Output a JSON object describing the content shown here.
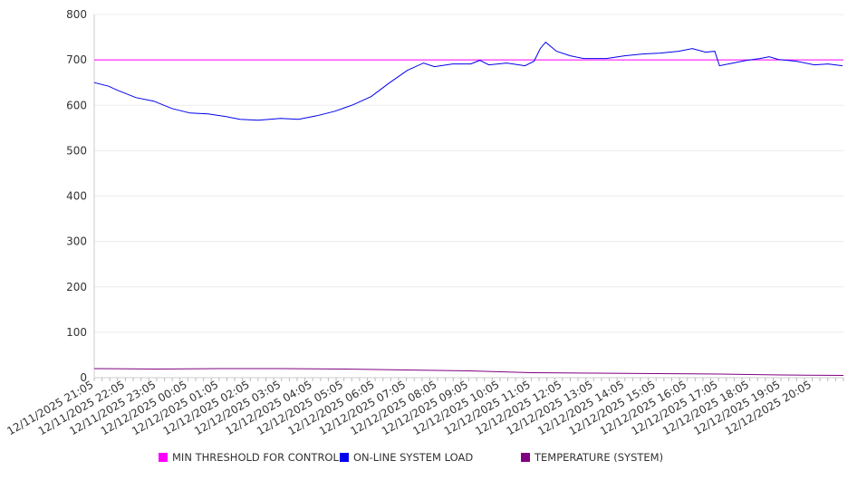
{
  "chart_data": {
    "type": "line",
    "title": "",
    "xlabel": "",
    "ylabel": "",
    "ylim": [
      0,
      800
    ],
    "yticks": [
      "0",
      "100",
      "200",
      "300",
      "400",
      "500",
      "600",
      "700",
      "800"
    ],
    "xlim_hours": [
      0,
      24
    ],
    "xtick_labels": [
      "12/11/2025 21:05",
      "12/11/2025 22:05",
      "12/11/2025 23:05",
      "12/12/2025 00:05",
      "12/12/2025 01:05",
      "12/12/2025 02:05",
      "12/12/2025 03:05",
      "12/12/2025 04:05",
      "12/12/2025 05:05",
      "12/12/2025 06:05",
      "12/12/2025 07:05",
      "12/12/2025 08:05",
      "12/12/2025 09:05",
      "12/12/2025 10:05",
      "12/12/2025 11:05",
      "12/12/2025 12:05",
      "12/12/2025 13:05",
      "12/12/2025 14:05",
      "12/12/2025 15:05",
      "12/12/2025 16:05",
      "12/12/2025 17:05",
      "12/12/2025 18:05",
      "12/12/2025 19:05",
      "12/12/2025 20:05"
    ],
    "grid": true,
    "legend_position": "bottom",
    "series": [
      {
        "name": "MIN THRESHOLD FOR CONTROL",
        "color": "#ff00ff",
        "points": [
          [
            0,
            700
          ],
          [
            24,
            700
          ]
        ]
      },
      {
        "name": "ON-LINE SYSTEM LOAD",
        "color": "#0000ee",
        "points": [
          [
            0,
            650
          ],
          [
            0.46,
            642
          ],
          [
            0.75,
            633
          ],
          [
            1.33,
            617
          ],
          [
            1.91,
            609
          ],
          [
            2.49,
            593
          ],
          [
            3.07,
            583
          ],
          [
            3.65,
            581
          ],
          [
            4.23,
            575
          ],
          [
            4.67,
            569
          ],
          [
            5.25,
            567
          ],
          [
            5.97,
            571
          ],
          [
            6.55,
            569
          ],
          [
            7.13,
            577
          ],
          [
            7.71,
            587
          ],
          [
            8.29,
            601
          ],
          [
            8.87,
            619
          ],
          [
            9.45,
            649
          ],
          [
            10.03,
            677
          ],
          [
            10.55,
            693
          ],
          [
            10.9,
            685
          ],
          [
            11.48,
            691
          ],
          [
            12.06,
            691
          ],
          [
            12.35,
            699
          ],
          [
            12.64,
            689
          ],
          [
            13.22,
            693
          ],
          [
            13.8,
            687
          ],
          [
            14.09,
            697
          ],
          [
            14.29,
            725
          ],
          [
            14.46,
            739
          ],
          [
            14.81,
            719
          ],
          [
            15.25,
            709
          ],
          [
            15.68,
            703
          ],
          [
            16.41,
            703
          ],
          [
            16.99,
            709
          ],
          [
            17.57,
            713
          ],
          [
            18.14,
            715
          ],
          [
            18.72,
            719
          ],
          [
            19.16,
            725
          ],
          [
            19.59,
            717
          ],
          [
            19.88,
            719
          ],
          [
            20.03,
            687
          ],
          [
            20.46,
            693
          ],
          [
            20.9,
            699
          ],
          [
            21.33,
            703
          ],
          [
            21.62,
            707
          ],
          [
            21.91,
            701
          ],
          [
            22.49,
            697
          ],
          [
            23.07,
            689
          ],
          [
            23.51,
            691
          ],
          [
            23.97,
            687
          ]
        ]
      },
      {
        "name": "TEMPERATURE (SYSTEM)",
        "color": "#800080",
        "points": [
          [
            0,
            20
          ],
          [
            2,
            19
          ],
          [
            4,
            20
          ],
          [
            6,
            20
          ],
          [
            8,
            19
          ],
          [
            10,
            17
          ],
          [
            12,
            15
          ],
          [
            14,
            11
          ],
          [
            16,
            10
          ],
          [
            18,
            9
          ],
          [
            20,
            8
          ],
          [
            22,
            6
          ],
          [
            24,
            5
          ]
        ]
      }
    ]
  }
}
